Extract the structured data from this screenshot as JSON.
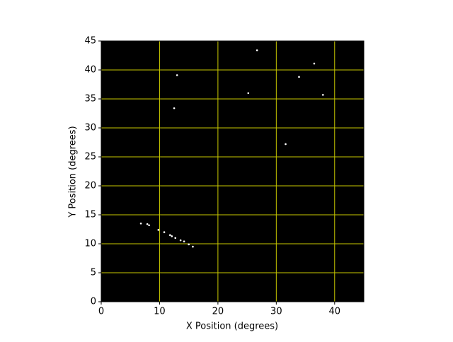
{
  "chart_data": {
    "type": "scatter",
    "x_label": "X Position (degrees)",
    "y_label": "Y Position (degrees)",
    "x": [
      26.7,
      13.0,
      36.5,
      33.9,
      25.2,
      38.0,
      12.5,
      31.6,
      6.8,
      7.9,
      8.2,
      9.8,
      10.8,
      11.8,
      12.1,
      12.7,
      13.6,
      14.2,
      15.0,
      15.7
    ],
    "y": [
      43.4,
      39.1,
      41.1,
      38.8,
      36.0,
      35.7,
      33.4,
      27.2,
      13.5,
      13.4,
      13.2,
      12.4,
      12.0,
      11.5,
      11.3,
      11.0,
      10.6,
      10.4,
      9.9,
      9.5
    ],
    "color": "#ffffff",
    "background": "#000000",
    "grid": true,
    "grid_color": "#c8c800",
    "xlim": [
      0,
      45
    ],
    "ylim": [
      0,
      45
    ],
    "xticks": [
      0,
      10,
      20,
      30,
      40
    ],
    "yticks": [
      0,
      5,
      10,
      15,
      20,
      25,
      30,
      35,
      40,
      45
    ]
  }
}
